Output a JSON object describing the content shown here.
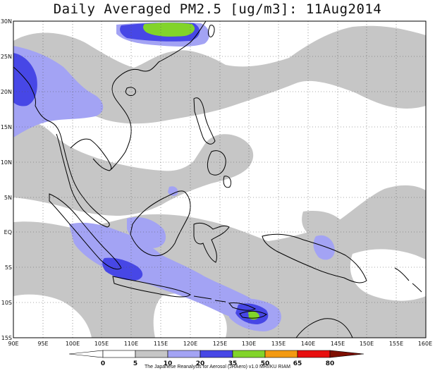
{
  "title": "Daily Averaged PM2.5 [ug/m3]: 11Aug2014",
  "footer": "The Japanese Reanalysis for Aerosol (JRAero) v1.0 MRI/KU RIAM",
  "lat_labels": [
    "30N",
    "25N",
    "20N",
    "15N",
    "10N",
    "5N",
    "EQ",
    "5S",
    "10S",
    "15S"
  ],
  "lon_labels": [
    "90E",
    "95E",
    "100E",
    "105E",
    "110E",
    "115E",
    "120E",
    "125E",
    "130E",
    "135E",
    "140E",
    "145E",
    "150E",
    "155E",
    "160E"
  ],
  "legend": {
    "colors": [
      "#ffffff",
      "#c6c6c6",
      "#a3a3f4",
      "#4747e6",
      "#82d42a",
      "#f39a12",
      "#e80f0f",
      "#7e0e00"
    ],
    "ticks": [
      "0",
      "5",
      "10",
      "20",
      "35",
      "50",
      "65",
      "80"
    ]
  },
  "map": {
    "lon_range": [
      90,
      160
    ],
    "lat_range": [
      -15,
      30
    ],
    "land_color": "#ffffff",
    "grid": "dotted"
  }
}
